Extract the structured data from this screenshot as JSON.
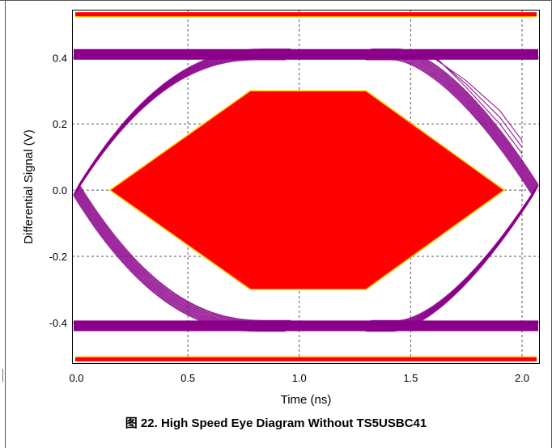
{
  "chart_data": {
    "type": "eye-diagram",
    "caption": "图 22. High Speed Eye Diagram Without TS5USBC41",
    "xlabel": "Time (ns)",
    "ylabel": "Differential Signal (V)",
    "xlim": [
      -0.02,
      2.08
    ],
    "ylim": [
      -0.525,
      0.545
    ],
    "x_ticks": [
      0.0,
      0.5,
      1.0,
      1.5,
      2.0
    ],
    "x_tick_labels": [
      "0.0",
      "0.5",
      "1.0",
      "1.5",
      "2.0"
    ],
    "y_ticks": [
      0.4,
      0.2,
      0.0,
      -0.2,
      -0.4
    ],
    "y_tick_labels": [
      "0.4",
      "0.2",
      "0.0",
      "-0.2",
      "-0.4"
    ],
    "grid": true,
    "mask": {
      "color": "#ff0000",
      "polygon": [
        [
          0.15,
          0.0
        ],
        [
          0.78,
          0.3
        ],
        [
          1.3,
          0.3
        ],
        [
          1.92,
          0.0
        ],
        [
          1.3,
          -0.3
        ],
        [
          0.78,
          -0.3
        ]
      ],
      "upper_limit": 0.53,
      "lower_limit": -0.51
    },
    "signal": {
      "color": "#8b008b",
      "high_level": 0.41,
      "low_level": -0.41,
      "crossing_points_ns": [
        0.0,
        2.06
      ],
      "eye_height_v": 0.82,
      "unit_interval_ns": 2.06
    }
  }
}
